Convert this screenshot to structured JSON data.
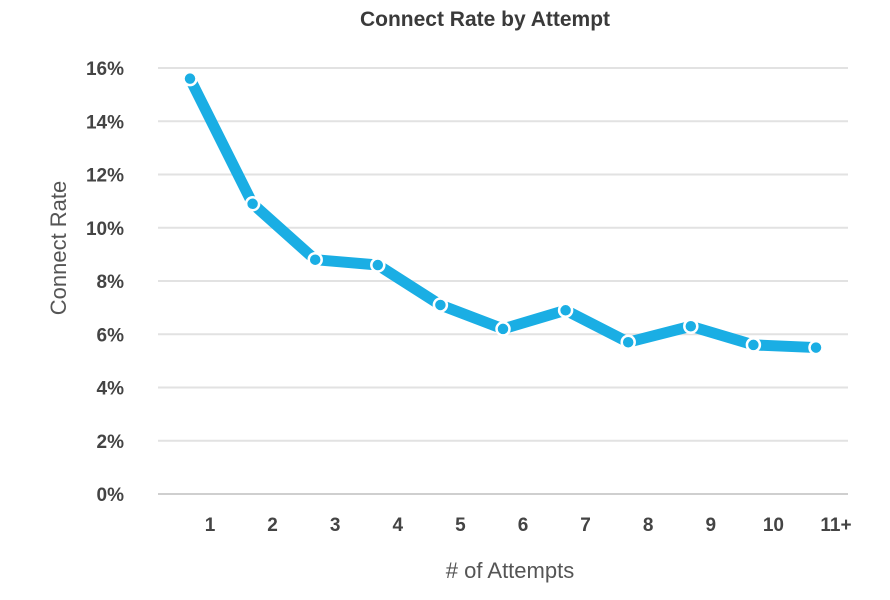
{
  "chart_data": {
    "type": "line",
    "title": "Connect Rate by Attempt",
    "xlabel": "# of Attempts",
    "ylabel": "Connect Rate",
    "categories": [
      "1",
      "2",
      "3",
      "4",
      "5",
      "6",
      "7",
      "8",
      "9",
      "10",
      "11+"
    ],
    "y_ticks": [
      "0%",
      "2%",
      "4%",
      "6%",
      "8%",
      "10%",
      "12%",
      "14%",
      "16%"
    ],
    "ylim": [
      0,
      16
    ],
    "series": [
      {
        "values": [
          15.6,
          10.9,
          8.8,
          8.6,
          7.1,
          6.2,
          6.9,
          5.7,
          6.3,
          5.6,
          5.5
        ],
        "color": "#1aaee4"
      }
    ],
    "grid": true,
    "legend": "none"
  }
}
